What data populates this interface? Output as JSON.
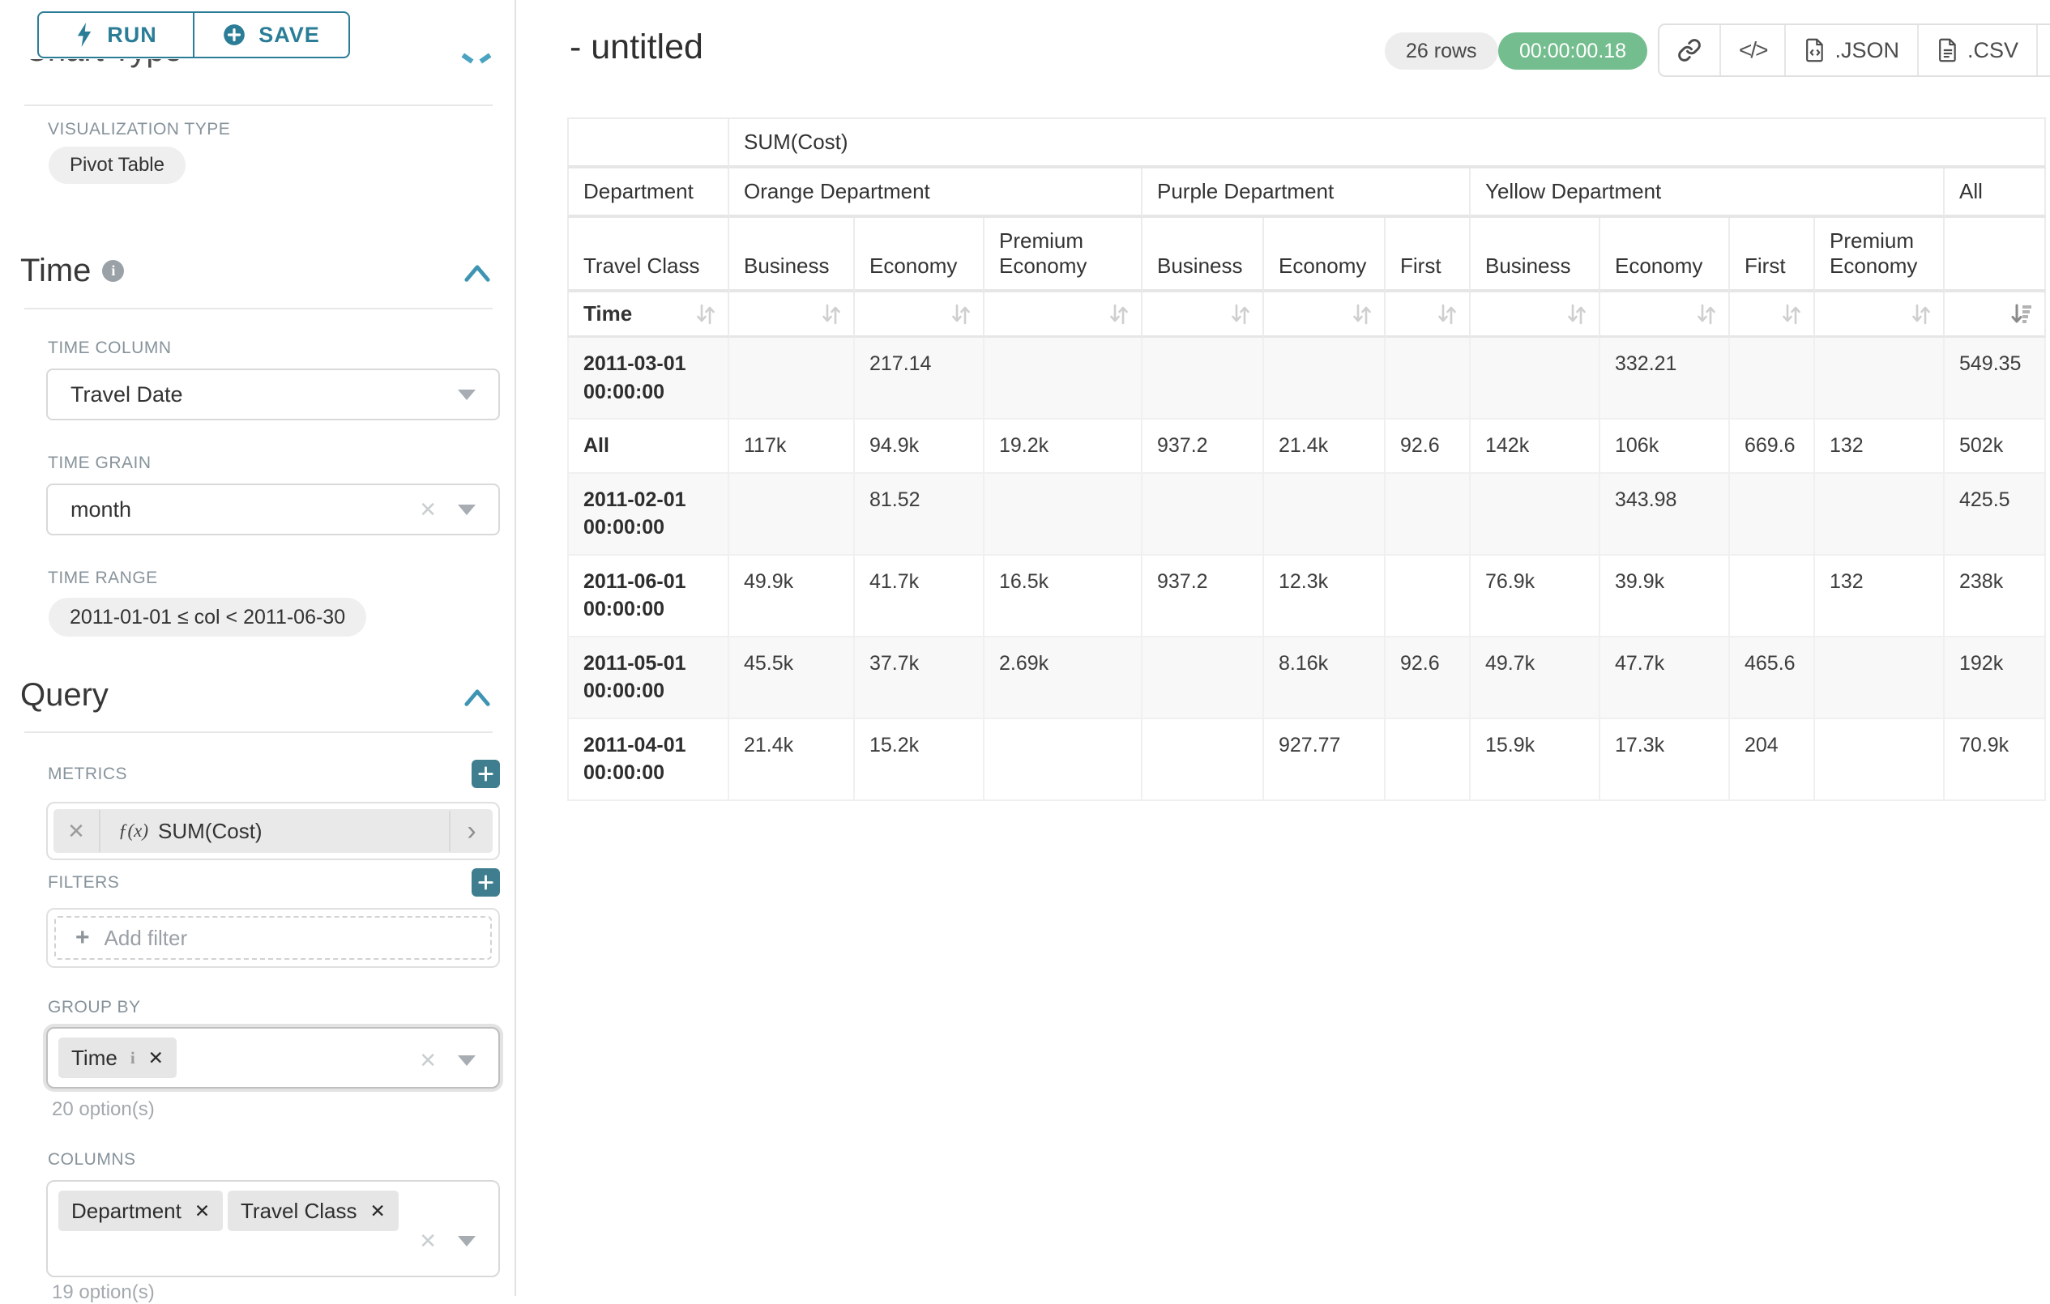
{
  "colors": {
    "accent_teal": "#2b7d97",
    "plus_teal": "#3e7e8f",
    "success_green": "#74bd8e"
  },
  "sidebar": {
    "run_label": "RUN",
    "save_label": "SAVE",
    "scrolled_section_title": "Chart Type",
    "visualization_type_label": "VISUALIZATION TYPE",
    "visualization_type_value": "Pivot Table",
    "time_section": {
      "title": "Time",
      "time_column_label": "TIME COLUMN",
      "time_column_value": "Travel Date",
      "time_grain_label": "TIME GRAIN",
      "time_grain_value": "month",
      "time_range_label": "TIME RANGE",
      "time_range_value": "2011-01-01 ≤ col < 2011-06-30"
    },
    "query_section": {
      "title": "Query",
      "metrics_label": "METRICS",
      "metric_fx": "ƒ(x)",
      "metric_name": "SUM(Cost)",
      "filters_label": "FILTERS",
      "add_filter_label": "Add filter",
      "group_by_label": "GROUP BY",
      "group_by_tags": [
        {
          "label": "Time"
        }
      ],
      "group_by_options_hint": "20 option(s)",
      "columns_label": "COLUMNS",
      "columns_tags": [
        {
          "label": "Department"
        },
        {
          "label": "Travel Class"
        }
      ],
      "columns_options_hint": "19 option(s)"
    }
  },
  "header": {
    "title": "- untitled",
    "row_count": "26 rows",
    "duration": "00:00:00.18",
    "json_label": ".JSON",
    "csv_label": ".CSV"
  },
  "pivot": {
    "metric_label": "SUM(Cost)",
    "col_dim_label": "Department",
    "sub_dim_label": "Travel Class",
    "row_dim_label": "Time",
    "col_groups": [
      {
        "label": "Orange Department",
        "cols": [
          "Business",
          "Economy",
          "Premium Economy"
        ]
      },
      {
        "label": "Purple Department",
        "cols": [
          "Business",
          "Economy",
          "First"
        ]
      },
      {
        "label": "Yellow Department",
        "cols": [
          "Business",
          "Economy",
          "First",
          "Premium Economy"
        ]
      },
      {
        "label": "All",
        "cols": [
          ""
        ]
      }
    ],
    "rows": [
      {
        "label": "2011-03-01 00:00:00",
        "tall": true,
        "values": [
          "",
          "217.14",
          "",
          "",
          "",
          "",
          "",
          "332.21",
          "",
          "",
          "549.35"
        ]
      },
      {
        "label": "All",
        "tall": false,
        "values": [
          "117k",
          "94.9k",
          "19.2k",
          "937.2",
          "21.4k",
          "92.6",
          "142k",
          "106k",
          "669.6",
          "132",
          "502k"
        ]
      },
      {
        "label": "2011-02-01 00:00:00",
        "tall": true,
        "values": [
          "",
          "81.52",
          "",
          "",
          "",
          "",
          "",
          "343.98",
          "",
          "",
          "425.5"
        ]
      },
      {
        "label": "2011-06-01 00:00:00",
        "tall": true,
        "values": [
          "49.9k",
          "41.7k",
          "16.5k",
          "937.2",
          "12.3k",
          "",
          "76.9k",
          "39.9k",
          "",
          "132",
          "238k"
        ]
      },
      {
        "label": "2011-05-01 00:00:00",
        "tall": true,
        "values": [
          "45.5k",
          "37.7k",
          "2.69k",
          "",
          "8.16k",
          "92.6",
          "49.7k",
          "47.7k",
          "465.6",
          "",
          "192k"
        ]
      },
      {
        "label": "2011-04-01 00:00:00",
        "tall": true,
        "values": [
          "21.4k",
          "15.2k",
          "",
          "",
          "927.77",
          "",
          "15.9k",
          "17.3k",
          "204",
          "",
          "70.9k"
        ]
      }
    ]
  }
}
